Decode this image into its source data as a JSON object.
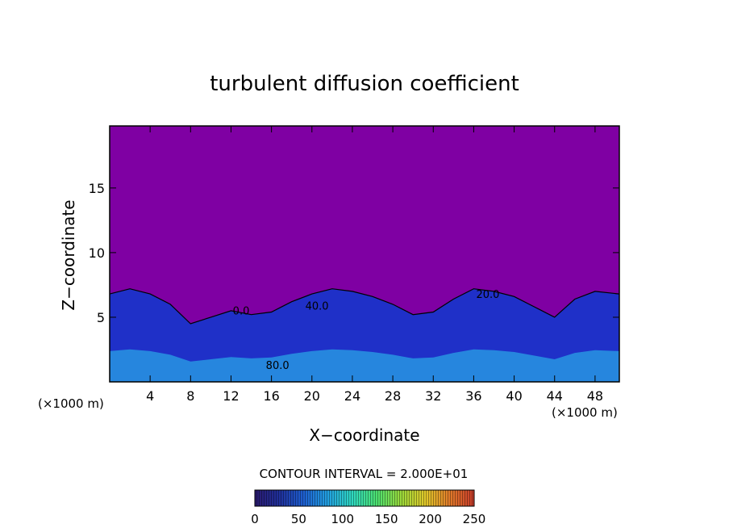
{
  "chart_data": {
    "type": "heatmap",
    "title": "turbulent diffusion coefficient",
    "xlabel": "X−coordinate",
    "ylabel": "Z−coordinate",
    "x_unit_left": "(×1000 m)",
    "x_unit_right": "(×1000 m)",
    "x_ticks": [
      4,
      8,
      12,
      16,
      20,
      24,
      28,
      32,
      36,
      40,
      44,
      48
    ],
    "y_ticks": [
      5,
      10,
      15
    ],
    "xlim": [
      0,
      50.4
    ],
    "ylim": [
      0,
      19.8
    ],
    "grid": false,
    "contour_interval_text": "CONTOUR INTERVAL = 2.000E+01",
    "contour_labels": [
      {
        "text": "0.0",
        "x": 13.0,
        "y": 5.2
      },
      {
        "text": "40.0",
        "x": 20.5,
        "y": 5.6
      },
      {
        "text": "20.0",
        "x": 37.4,
        "y": 6.5
      },
      {
        "text": "80.0",
        "x": 16.6,
        "y": 1.0
      }
    ],
    "colorbar": {
      "ticks": [
        0,
        50,
        100,
        150,
        200,
        250
      ],
      "range": [
        0,
        250
      ],
      "colors": [
        "#2a1a6e",
        "#1f2f9a",
        "#1e5fd0",
        "#22a0e0",
        "#2fd8c0",
        "#4ce070",
        "#9ad83a",
        "#e0c82a",
        "#e07a2a",
        "#c83a2a"
      ]
    },
    "field": {
      "background_color": "#7f00a3",
      "low_value_color": "#1f30c8",
      "turbulent_layer_top_z": [
        [
          0,
          6.8
        ],
        [
          2,
          7.2
        ],
        [
          4,
          6.8
        ],
        [
          6,
          6.0
        ],
        [
          8,
          4.5
        ],
        [
          10,
          5.0
        ],
        [
          12,
          5.5
        ],
        [
          14,
          5.2
        ],
        [
          16,
          5.4
        ],
        [
          18,
          6.2
        ],
        [
          20,
          6.8
        ],
        [
          22,
          7.2
        ],
        [
          24,
          7.0
        ],
        [
          26,
          6.6
        ],
        [
          28,
          6.0
        ],
        [
          30,
          5.2
        ],
        [
          32,
          5.4
        ],
        [
          34,
          6.4
        ],
        [
          36,
          7.2
        ],
        [
          38,
          7.0
        ],
        [
          40,
          6.6
        ],
        [
          42,
          5.8
        ],
        [
          44,
          5.0
        ],
        [
          46,
          6.4
        ],
        [
          48,
          7.0
        ],
        [
          50.4,
          6.8
        ]
      ]
    }
  }
}
